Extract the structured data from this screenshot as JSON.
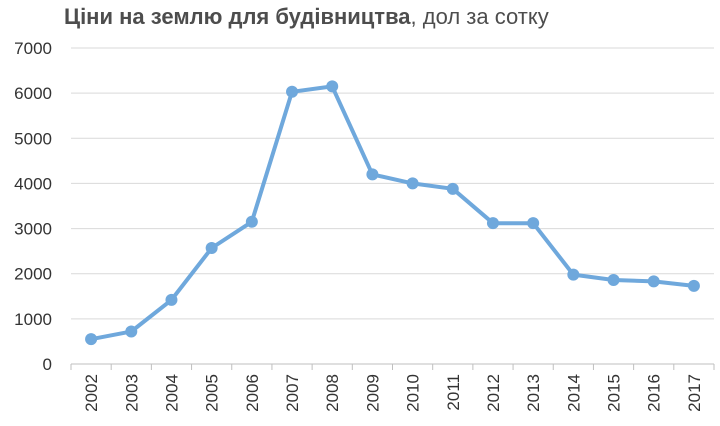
{
  "chart_data": {
    "type": "line",
    "title_bold": "Ціни на землю для будівництва",
    "title_rest": ", дол за сотку",
    "xlabel": "",
    "ylabel": "",
    "categories": [
      "2002",
      "2003",
      "2004",
      "2005",
      "2006",
      "2007",
      "2008",
      "2009",
      "2010",
      "2011",
      "2012",
      "2013",
      "2014",
      "2015",
      "2016",
      "2017"
    ],
    "series": [
      {
        "values": [
          550,
          720,
          1420,
          2570,
          3150,
          6030,
          6150,
          4200,
          4000,
          3880,
          3120,
          3120,
          1980,
          1860,
          1830,
          1730
        ]
      }
    ],
    "ylim": [
      0,
      7000
    ],
    "yticks": [
      0,
      1000,
      2000,
      3000,
      4000,
      5000,
      6000,
      7000
    ],
    "grid": true,
    "legend": "none",
    "colors": {
      "line": "#6fa8dc",
      "grid": "#d9d9d9",
      "axis": "#bfbfbf"
    }
  }
}
